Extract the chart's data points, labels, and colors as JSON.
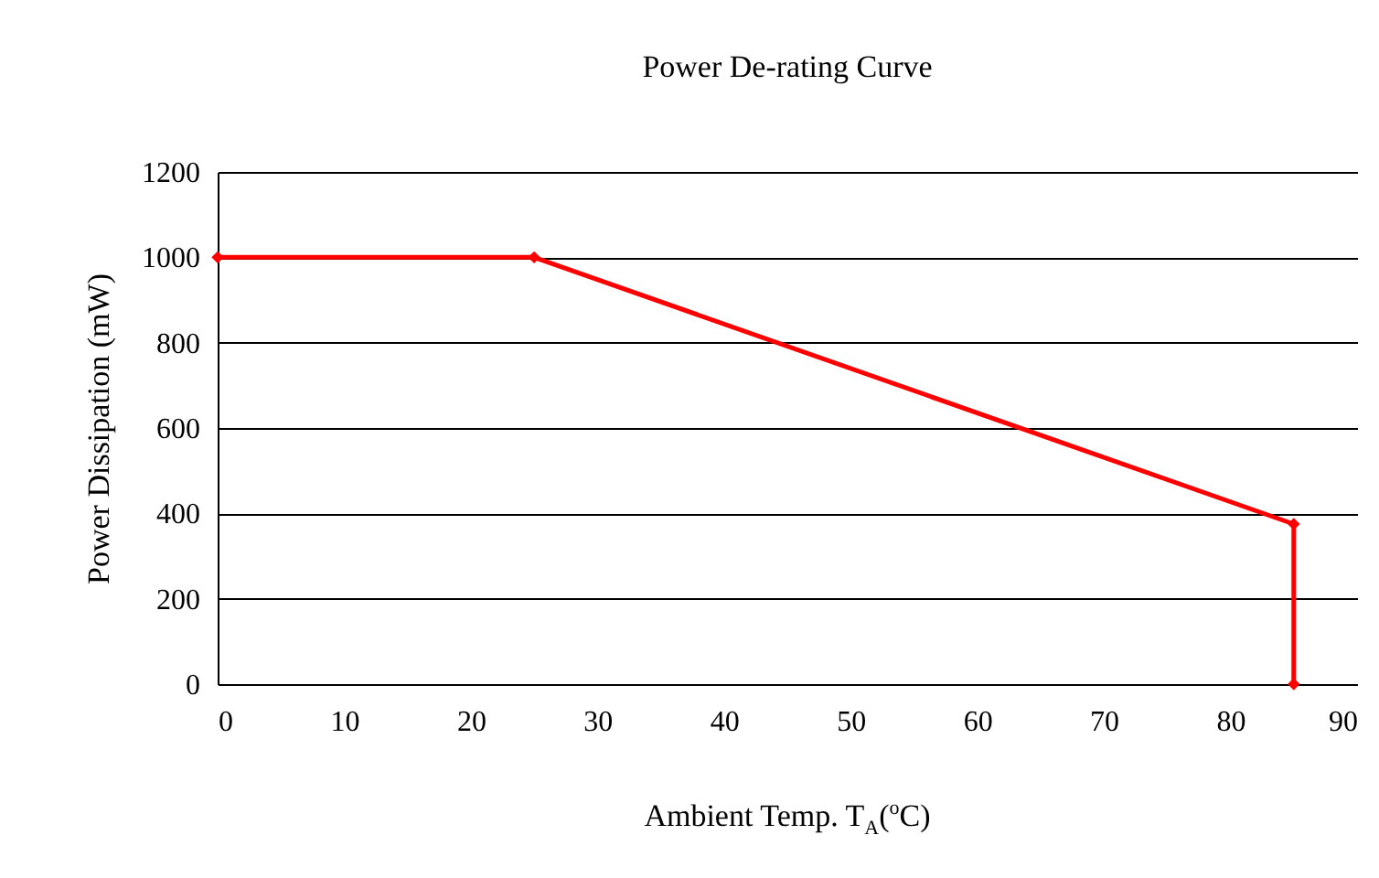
{
  "chart_data": {
    "type": "line",
    "title": "Power De-rating Curve",
    "xlabel": "Ambient Temp. T$_{A}$($^{o}$C)",
    "ylabel": "Power Dissipation (mW)",
    "x": [
      0,
      25,
      85,
      85
    ],
    "series": [
      {
        "color": "#ff0000",
        "values": [
          1000,
          1000,
          375,
          0
        ]
      }
    ],
    "xlim": [
      0,
      90
    ],
    "xticks": [
      0,
      10,
      20,
      30,
      40,
      50,
      60,
      70,
      80,
      90
    ],
    "ylim": [
      0,
      1200
    ],
    "yticks": [
      0,
      200,
      400,
      600,
      800,
      1000,
      1200
    ],
    "grid": "y",
    "legend": false,
    "marker": "diamond",
    "line_style": "solid"
  }
}
